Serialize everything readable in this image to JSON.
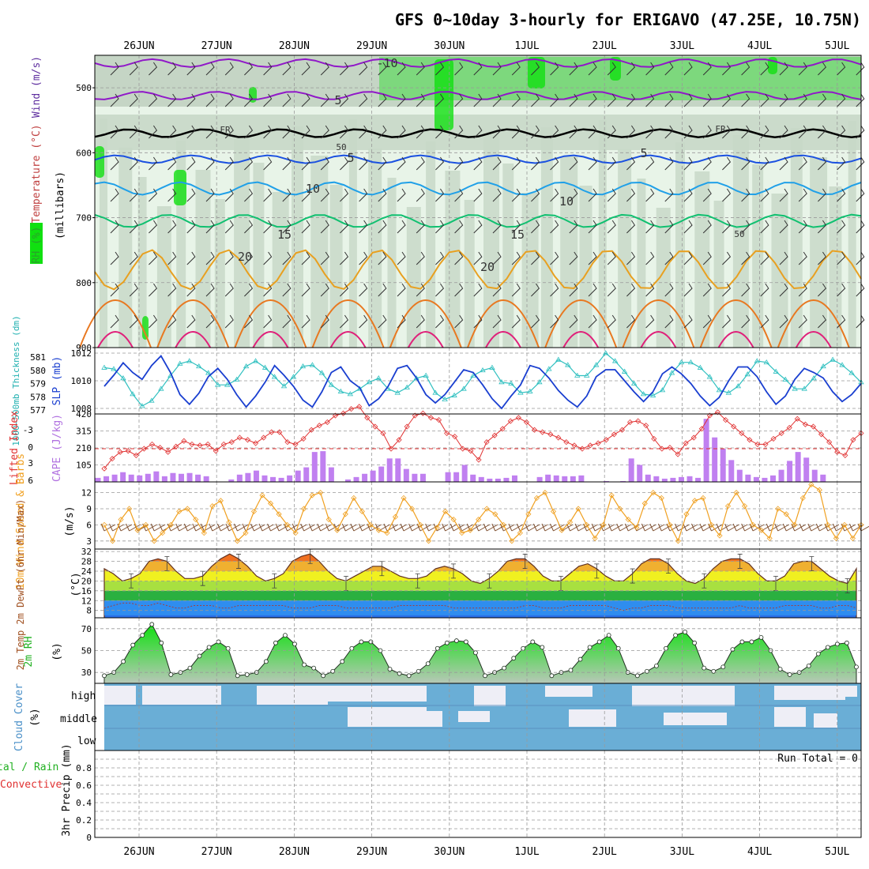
{
  "title": "GFS 0~10day 3-hourly for ERIGAVO (47.25E, 10.75N)",
  "dates": [
    "26JUN",
    "27JUN",
    "28JUN",
    "29JUN",
    "30JUN",
    "1JUL",
    "2JUL",
    "3JUL",
    "4JUL",
    "5JUL"
  ],
  "colors": {
    "rh_light": "#e8f4e8",
    "rh_mid": "#c8d8c8",
    "rh_dark": "#a8bca8",
    "rh_wet": "#70d870",
    "rh_sat": "#10e010",
    "slp": "#1a3fd0",
    "thickness": "#30c0c0",
    "lifted_index": "#e03030",
    "cape": "#c080f0",
    "wind": "#f0a020",
    "barb": "#805030",
    "temp_fill": "#f0a030",
    "rh2m": "#30d030",
    "cloud": "#6aaed6",
    "cloud_clear": "#eeeef6",
    "precip_total": "#30d030",
    "precip_conv": "#e03030"
  },
  "chart_data": [
    {
      "panel": "upper_air_cross_section",
      "type": "heatmap",
      "ylabel": "(millibars)",
      "side_labels": [
        "RH (%)",
        "Temperature (°C)",
        "Wind (m/s)"
      ],
      "y_ticks": [
        500,
        600,
        700,
        800,
        900
      ],
      "ylim": [
        450,
        900
      ],
      "contour_labels": [
        "-10",
        "5",
        "FR",
        "50",
        "5",
        "10",
        "15",
        "20",
        "10",
        "15",
        "20",
        "5",
        "FR",
        "50"
      ],
      "isotherms": [
        {
          "label": "-10",
          "color": "#9018c8",
          "level": 462
        },
        {
          "label": "-5",
          "color": "#9018c8",
          "level": 512
        },
        {
          "label": "FR",
          "color": "#000000",
          "level": 570
        },
        {
          "label": "5",
          "color": "#1a50e0",
          "level": 610
        },
        {
          "label": "10",
          "color": "#20a0e8",
          "level": 655
        },
        {
          "label": "15",
          "color": "#10c070",
          "level": 705
        },
        {
          "label": "20",
          "color": "#e8a020",
          "level": 780
        }
      ]
    },
    {
      "panel": "slp_thickness",
      "type": "line",
      "left_label": "1000~500mb Thickness (dm)",
      "right_label": "SLP (mb)",
      "left_ticks": [
        577,
        578,
        579,
        580,
        581
      ],
      "right_ticks": [
        1008,
        1010,
        1012
      ],
      "series": [
        {
          "name": "SLP (mb)",
          "axis": "right",
          "values": [
            1009.6,
            1010.4,
            1011.3,
            1010.6,
            1010.1,
            1011.1,
            1011.8,
            1010.6,
            1009.0,
            1008.3,
            1009.1,
            1010.3,
            1010.9,
            1010.1,
            1009.0,
            1008.1,
            1008.9,
            1009.9,
            1011.1,
            1010.4,
            1009.6,
            1008.6,
            1008.1,
            1009.2,
            1010.6,
            1011.0,
            1010.0,
            1009.5,
            1008.2,
            1008.7,
            1009.6,
            1010.9,
            1011.1,
            1010.2,
            1009.0,
            1008.4,
            1009.0,
            1009.9,
            1010.8,
            1010.6,
            1009.7,
            1008.7,
            1008.0,
            1008.9,
            1009.7,
            1011.1,
            1010.9,
            1010.2,
            1009.3,
            1008.6,
            1008.1,
            1008.9,
            1010.3,
            1010.8,
            1010.8,
            1010.0,
            1009.2,
            1008.5,
            1009.2,
            1010.5,
            1011.0,
            1010.5,
            1009.8,
            1008.9,
            1008.2,
            1008.8,
            1010.0,
            1011.0,
            1011.0,
            1010.3,
            1009.2,
            1008.3,
            1008.9,
            1010.1,
            1010.9,
            1010.6,
            1010.2,
            1009.2,
            1008.5,
            1009.0,
            1009.8
          ]
        },
        {
          "name": "Thickness (dm)",
          "axis": "left",
          "values": [
            580.2,
            580.1,
            579.4,
            578.2,
            577.3,
            577.7,
            578.6,
            579.6,
            580.5,
            580.7,
            580.3,
            579.8,
            578.9,
            578.9,
            579.3,
            580.3,
            580.7,
            580.2,
            579.5,
            578.8,
            579.5,
            580.3,
            580.4,
            579.8,
            578.9,
            578.4,
            578.2,
            578.6,
            579.1,
            579.4,
            578.6,
            578.3,
            578.7,
            579.4,
            579.6,
            578.3,
            577.8,
            578.1,
            578.6,
            579.6,
            580.0,
            580.2,
            579.1,
            579.0,
            578.3,
            578.4,
            579.1,
            580.1,
            580.8,
            580.4,
            579.6,
            579.6,
            580.4,
            581.3,
            580.7,
            579.9,
            579.0,
            578.2,
            578.1,
            578.5,
            579.8,
            580.6,
            580.6,
            580.2,
            579.5,
            578.5,
            578.3,
            578.8,
            579.7,
            580.7,
            580.6,
            579.9,
            579.3,
            578.6,
            578.6,
            579.4,
            580.3,
            580.8,
            580.4,
            579.8,
            579.1
          ]
        }
      ]
    },
    {
      "panel": "lifted_index_cape",
      "type": "bar",
      "left_label": "Lifted Index",
      "right_label": "CAPE (J/kg)",
      "left_ticks": [
        "-3",
        "0",
        "3",
        "6"
      ],
      "right_ticks": [
        105,
        210,
        315,
        420
      ],
      "series": [
        {
          "name": "CAPE (J/kg)",
          "axis": "right",
          "values": [
            25,
            35,
            45,
            60,
            45,
            40,
            50,
            65,
            35,
            55,
            50,
            55,
            45,
            35,
            0,
            0,
            15,
            45,
            55,
            70,
            40,
            30,
            25,
            40,
            70,
            90,
            185,
            190,
            90,
            0,
            15,
            30,
            50,
            70,
            95,
            145,
            145,
            80,
            50,
            50,
            0,
            0,
            60,
            60,
            105,
            45,
            30,
            20,
            20,
            25,
            40,
            0,
            0,
            30,
            45,
            40,
            35,
            35,
            40,
            0,
            0,
            5,
            0,
            5,
            145,
            105,
            45,
            35,
            20,
            25,
            30,
            35,
            25,
            390,
            275,
            205,
            135,
            75,
            45,
            30,
            25,
            40,
            75,
            130,
            185,
            150,
            75,
            45,
            0,
            0,
            0,
            0
          ]
        },
        {
          "name": "Lifted Index",
          "axis": "left",
          "values": [
            1.8,
            0.9,
            0.3,
            0.2,
            0.6,
            0.0,
            -0.4,
            -0.1,
            0.3,
            -0.2,
            -0.7,
            -0.4,
            -0.3,
            -0.4,
            0.2,
            -0.4,
            -0.6,
            -1.0,
            -0.8,
            -0.5,
            -1.0,
            -1.5,
            -1.5,
            -0.6,
            -0.4,
            -0.9,
            -1.7,
            -2.1,
            -2.4,
            -3.0,
            -3.2,
            -3.6,
            -3.8,
            -2.8,
            -2.0,
            -1.4,
            0.0,
            -0.8,
            -2.0,
            -3.0,
            -3.2,
            -2.8,
            -2.6,
            -1.4,
            -1.1,
            0.0,
            0.2,
            1.0,
            -0.6,
            -1.2,
            -1.8,
            -2.5,
            -2.8,
            -2.4,
            -1.7,
            -1.5,
            -1.3,
            -1.0,
            -0.6,
            -0.3,
            0.0,
            -0.3,
            -0.5,
            -0.8,
            -1.3,
            -1.7,
            -2.4,
            -2.5,
            -2.1,
            -0.9,
            0.0,
            -0.1,
            0.5,
            -0.5,
            -1.0,
            -1.8,
            -3.0,
            -3.3,
            -2.6,
            -2.0,
            -1.4,
            -0.8,
            -0.4,
            -0.4,
            -0.9,
            -1.4,
            -1.9,
            -2.7,
            -2.2,
            -2.0,
            -1.3,
            -0.6,
            0.3,
            0.6,
            -0.8,
            -1.4
          ]
        }
      ]
    },
    {
      "panel": "wind_10m",
      "type": "line",
      "left_label": "10m Wind Speed & Barbs",
      "right_label": "(m/s)",
      "y_ticks": [
        3,
        6,
        9,
        12
      ],
      "series": [
        {
          "name": "10m Wind Speed (m/s)",
          "values": [
            6.0,
            3.0,
            7.0,
            9.0,
            5.0,
            6.0,
            3.0,
            4.5,
            6.0,
            8.5,
            9.0,
            7.0,
            4.5,
            9.5,
            10.5,
            6.5,
            3.0,
            4.5,
            8.5,
            11.5,
            10.0,
            8.0,
            6.0,
            4.5,
            9.0,
            11.5,
            12.0,
            7.0,
            5.0,
            8.0,
            11.0,
            8.5,
            6.0,
            5.0,
            4.5,
            7.5,
            11.0,
            9.0,
            6.0,
            3.0,
            5.5,
            8.5,
            7.0,
            4.5,
            5.0,
            7.0,
            9.0,
            8.0,
            6.0,
            3.0,
            4.5,
            8.0,
            11.0,
            12.0,
            8.5,
            5.0,
            6.5,
            9.0,
            6.0,
            3.5,
            6.0,
            11.5,
            9.0,
            7.0,
            5.5,
            10.0,
            12.0,
            11.0,
            6.0,
            3.0,
            8.0,
            10.5,
            11.0,
            6.0,
            4.0,
            9.5,
            12.0,
            9.5,
            6.0,
            5.0,
            3.5,
            9.0,
            8.0,
            6.0,
            11.0,
            13.5,
            12.5,
            6.0,
            3.5,
            6.0,
            3.5,
            6.0
          ]
        }
      ]
    },
    {
      "panel": "temp_2m",
      "type": "area",
      "left_label": "2m Temp 2m DewPt (6hr Min/Max)",
      "right_label": "(°C)",
      "y_ticks": [
        8,
        12,
        16,
        20,
        24,
        28,
        32
      ],
      "series": [
        {
          "name": "2m Temp",
          "values": [
            25,
            23,
            20,
            21,
            23,
            28,
            29,
            28,
            24,
            21,
            21,
            22,
            26,
            29,
            31,
            29,
            26,
            22,
            20,
            21,
            23,
            28,
            30,
            31,
            28,
            24,
            21,
            20,
            22,
            24,
            26,
            26,
            24,
            22,
            21,
            21,
            22,
            25,
            26,
            25,
            23,
            20,
            19,
            21,
            24,
            28,
            29,
            29,
            26,
            22,
            20,
            20,
            23,
            26,
            27,
            25,
            22,
            20,
            20,
            23,
            27,
            29,
            29,
            27,
            23,
            20,
            19,
            21,
            25,
            28,
            29,
            29,
            27,
            23,
            20,
            20,
            22,
            27,
            28,
            28,
            25,
            22,
            20,
            19,
            25
          ]
        },
        {
          "name": "2m DewPt",
          "values": [
            9,
            10,
            11,
            11,
            10,
            10,
            11,
            10,
            9,
            9,
            10,
            10,
            10,
            9,
            9,
            10,
            10,
            10,
            10,
            10,
            10,
            9,
            9,
            9,
            10,
            10,
            10,
            9,
            9,
            9,
            9,
            9,
            9,
            10,
            10,
            10,
            10,
            10,
            10,
            9,
            9,
            9,
            9,
            9,
            9,
            9,
            9,
            10,
            10,
            9,
            9,
            9,
            10,
            10,
            10,
            10,
            10,
            9,
            8,
            9,
            9,
            10,
            10,
            10,
            9,
            9,
            9,
            9,
            9,
            9,
            9,
            10,
            9,
            9,
            9,
            9,
            10,
            10,
            10,
            10,
            9,
            9,
            10,
            10,
            9
          ]
        }
      ]
    },
    {
      "panel": "rh_2m",
      "type": "area",
      "left_label": "2m RH",
      "right_label": "(%)",
      "y_ticks": [
        30,
        50,
        70
      ],
      "series": [
        {
          "name": "2m RH (%)",
          "values": [
            27,
            30,
            40,
            55,
            64,
            74,
            57,
            28,
            30,
            34,
            45,
            53,
            58,
            52,
            27,
            28,
            30,
            40,
            57,
            64,
            56,
            37,
            34,
            27,
            31,
            40,
            52,
            58,
            58,
            50,
            33,
            29,
            27,
            31,
            38,
            52,
            57,
            59,
            58,
            48,
            27,
            30,
            34,
            43,
            52,
            58,
            53,
            27,
            30,
            32,
            42,
            53,
            58,
            64,
            52,
            30,
            27,
            31,
            36,
            52,
            64,
            67,
            57,
            34,
            31,
            35,
            51,
            58,
            58,
            62,
            50,
            33,
            28,
            30,
            36,
            47,
            53,
            56,
            57,
            35
          ]
        }
      ]
    },
    {
      "panel": "cloud_cover",
      "type": "heatmap",
      "left_label": "Cloud Cover",
      "right_label": "(%)",
      "rows": [
        "high",
        "middle",
        "low"
      ]
    },
    {
      "panel": "precip_3hr",
      "type": "bar",
      "left_label": "tal / Rain Convective",
      "right_label": "3hr Precip (mm)",
      "y_ticks": [
        0,
        0.2,
        0.4,
        0.6,
        0.8
      ],
      "annotation": "Run Total = 0",
      "series": [
        {
          "name": "Total / Rain",
          "values": []
        },
        {
          "name": "Convective",
          "values": []
        }
      ]
    }
  ]
}
